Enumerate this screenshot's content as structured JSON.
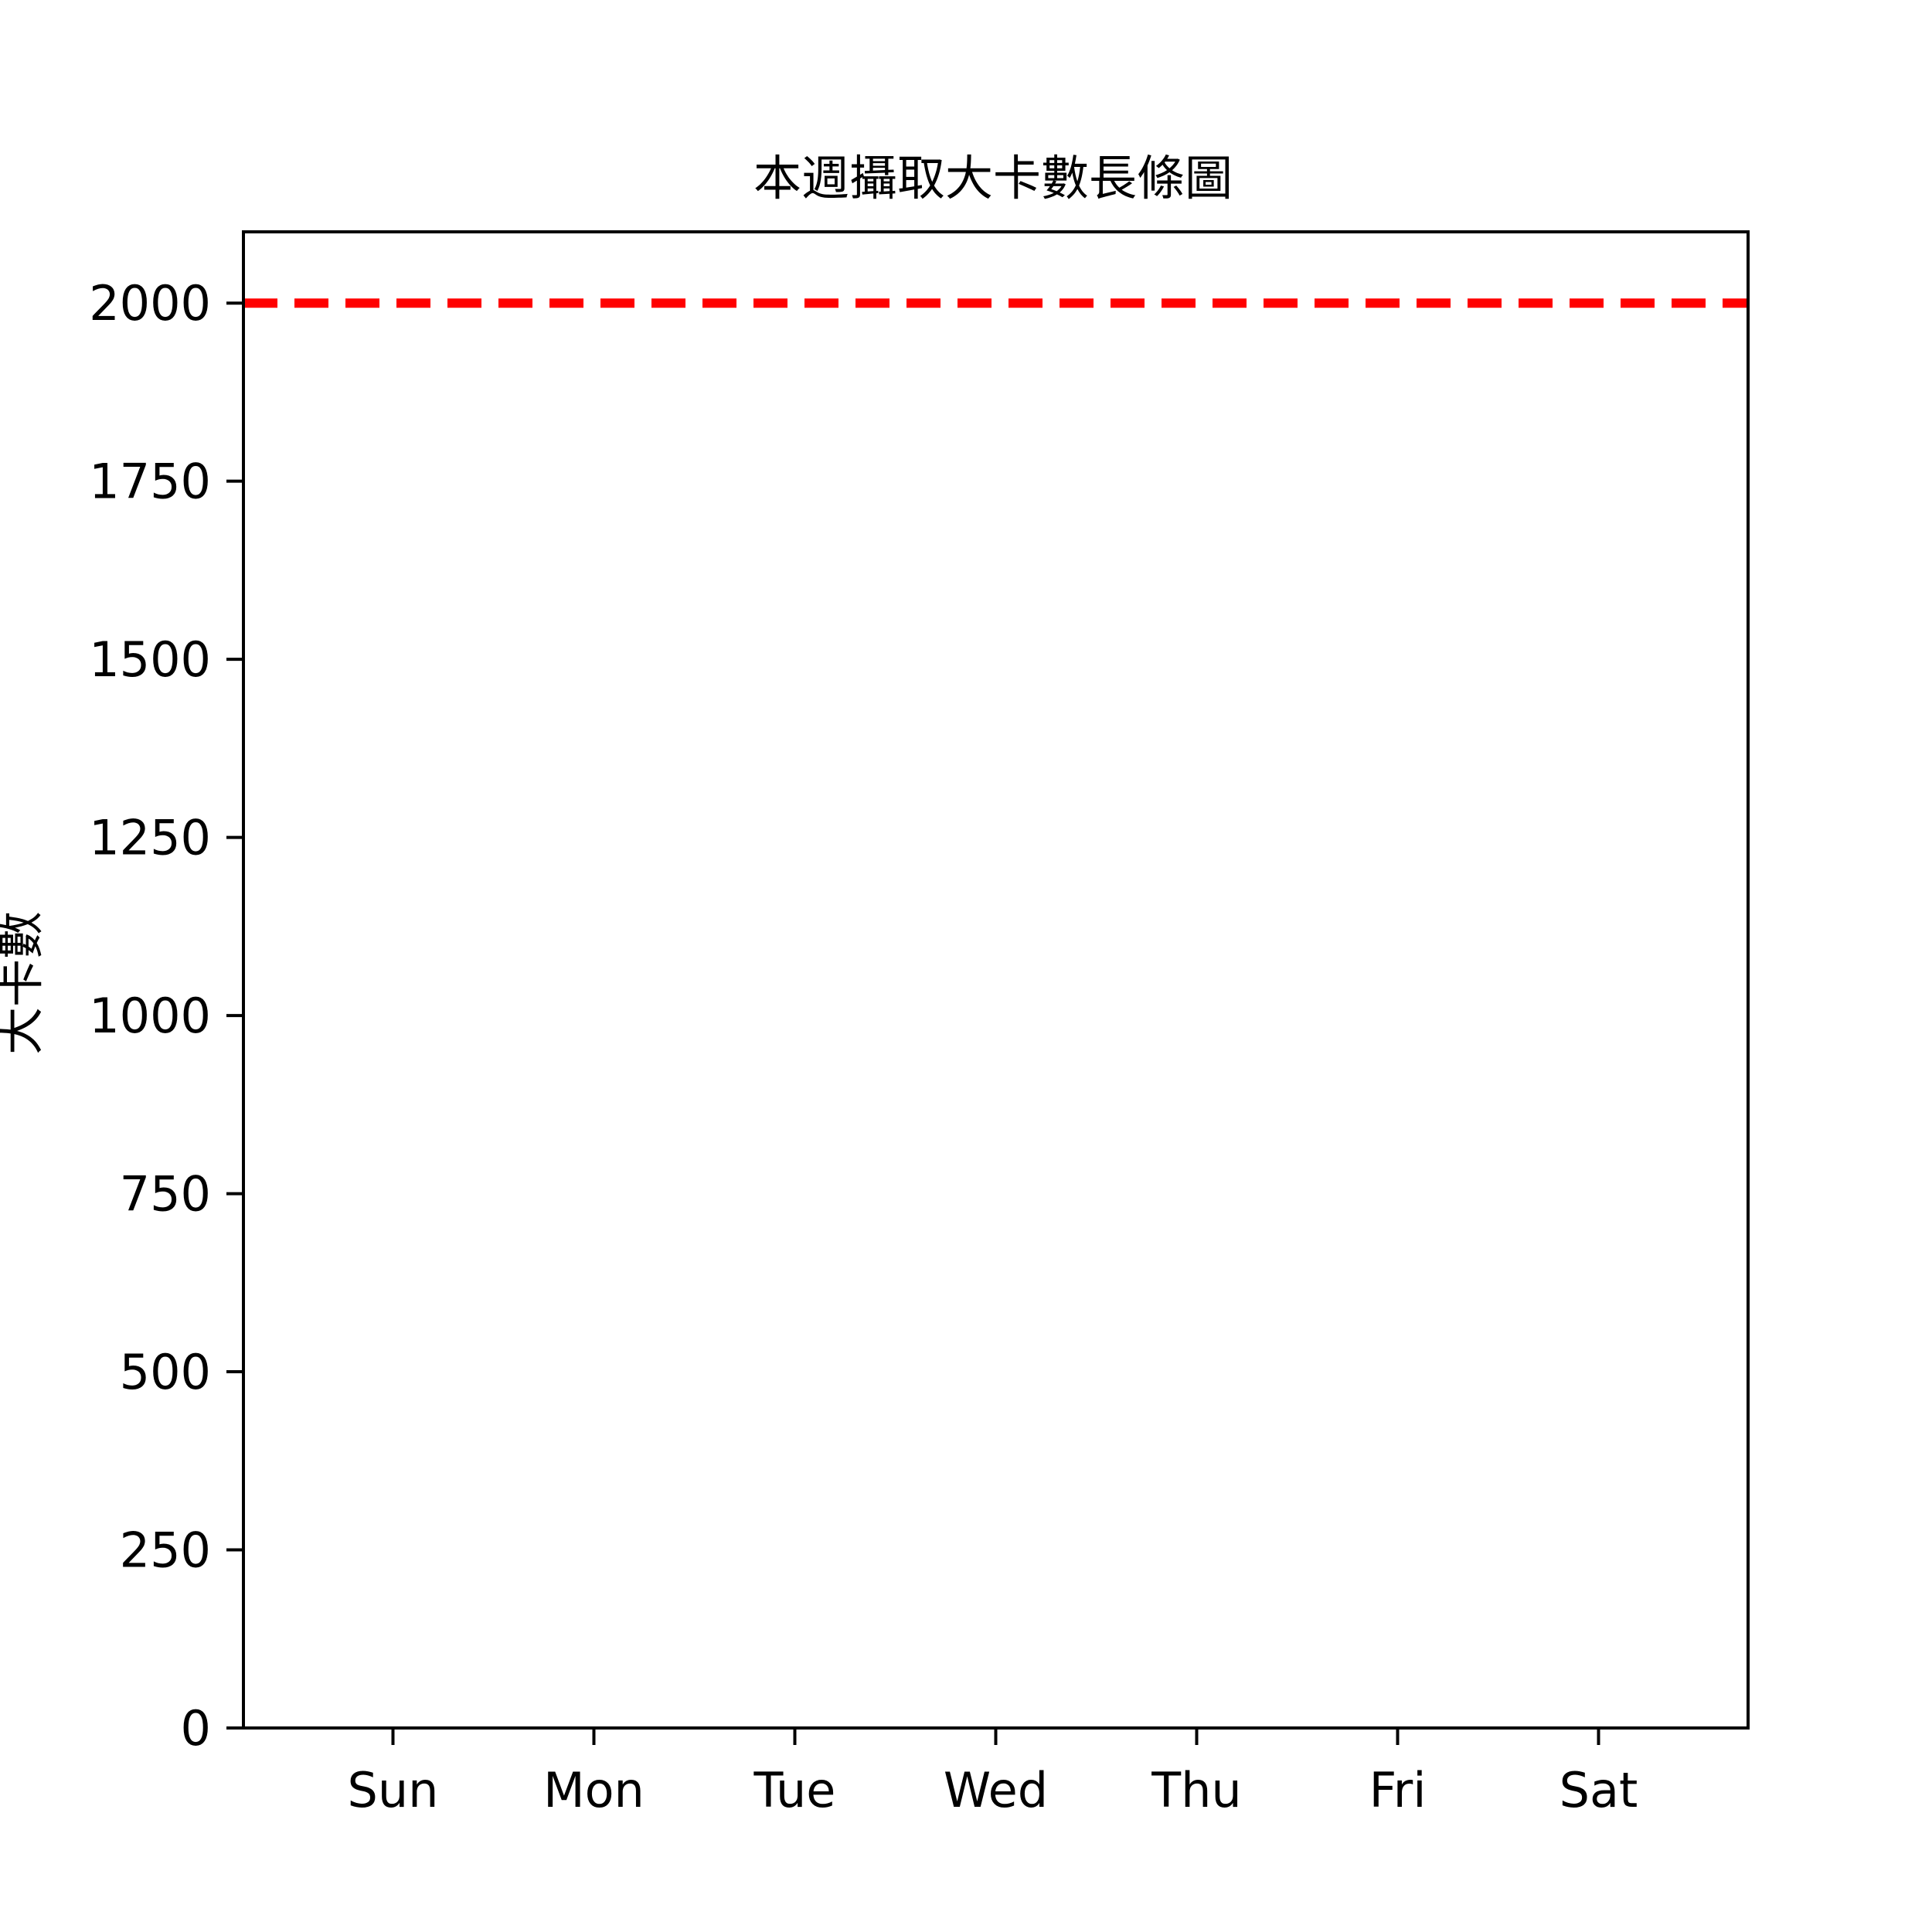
{
  "chart_data": {
    "type": "bar",
    "title": "本週攝取大卡數長條圖",
    "xlabel": "",
    "ylabel": "大卡數",
    "categories": [
      "Sun",
      "Mon",
      "Tue",
      "Wed",
      "Thu",
      "Fri",
      "Sat"
    ],
    "series": [
      {
        "values": [
          0,
          0,
          0,
          0,
          0,
          0,
          0
        ]
      }
    ],
    "ylim": [
      0,
      2100
    ],
    "yticks": [
      0,
      250,
      500,
      750,
      1000,
      1250,
      1500,
      1750,
      2000
    ],
    "ytick_labels": [
      "0",
      "250",
      "500",
      "750",
      "1000",
      "1250",
      "1500",
      "1750",
      "2000"
    ],
    "reference_line": {
      "y": 2000,
      "style": "dashed",
      "color": "#ff0000"
    },
    "grid": false,
    "legend": "none"
  }
}
